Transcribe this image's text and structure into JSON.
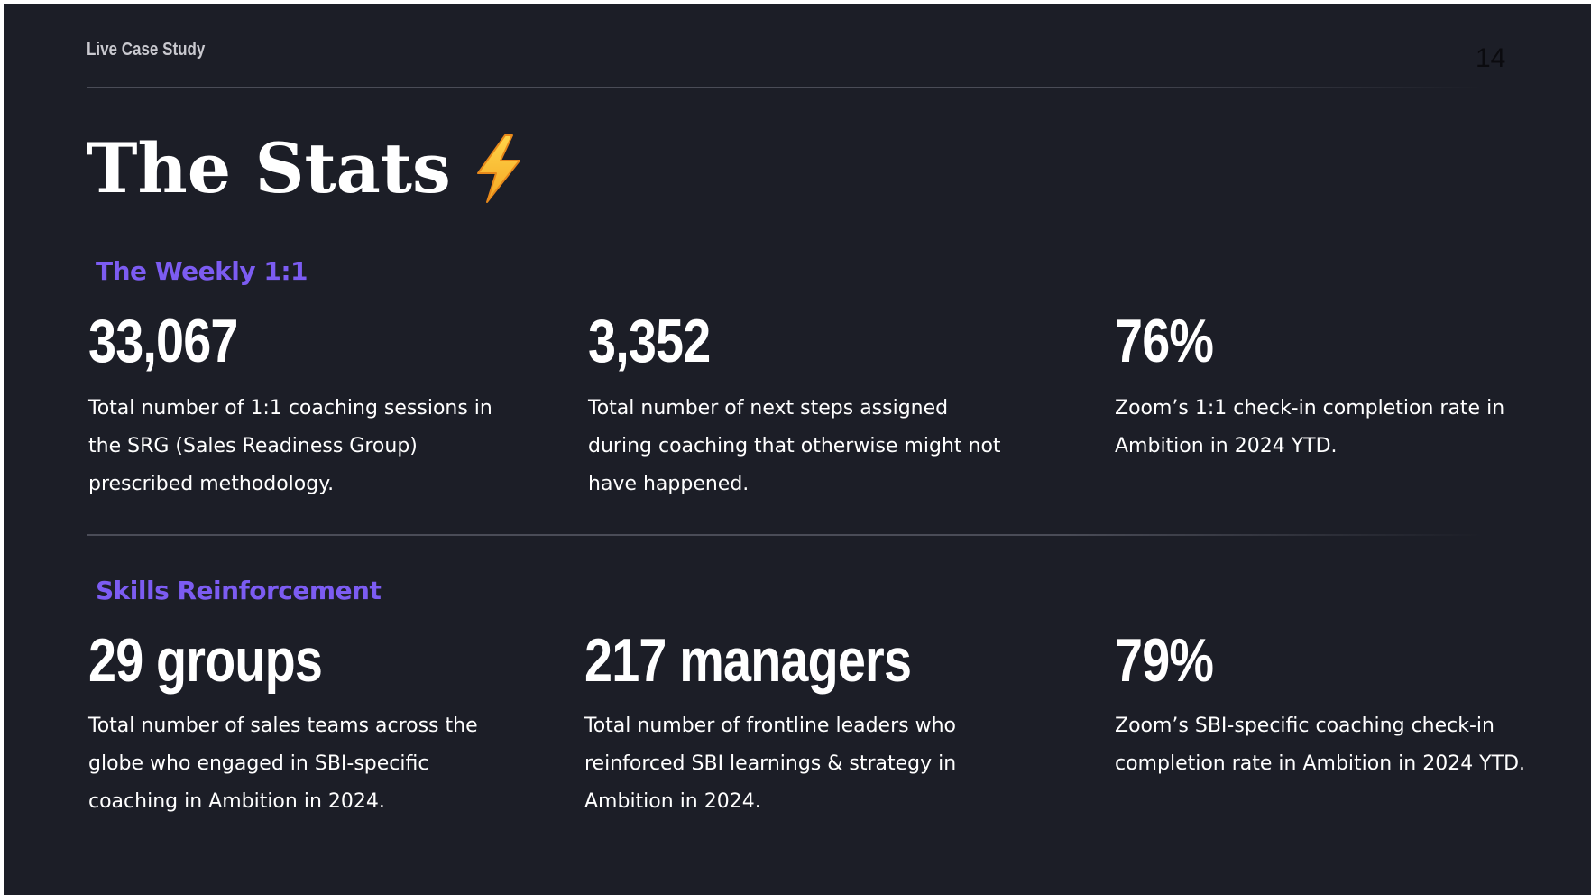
{
  "header": {
    "label": "Live Case Study",
    "page_number": "14"
  },
  "title": "The Stats",
  "title_icon": "lightning-bolt-icon",
  "colors": {
    "background": "#1c1e27",
    "accent": "#7c5cf2",
    "text": "#ffffff"
  },
  "sections": [
    {
      "label": "The Weekly 1:1",
      "stats": [
        {
          "value": "33,067",
          "description": "Total number of 1:1 coaching sessions in the SRG (Sales Readiness Group) prescribed methodology."
        },
        {
          "value": "3,352",
          "description": "Total number of next steps assigned during coaching that otherwise might not have happened."
        },
        {
          "value": "76%",
          "description": "Zoom’s 1:1 check-in completion rate in Ambition in 2024 YTD."
        }
      ]
    },
    {
      "label": "Skills Reinforcement",
      "stats": [
        {
          "value": "29 groups",
          "description": "Total number of sales teams across the globe who engaged in SBI-specific coaching in Ambition in 2024."
        },
        {
          "value": "217 managers",
          "description": "Total number of frontline leaders who reinforced SBI learnings & strategy  in Ambition in 2024."
        },
        {
          "value": "79%",
          "description": "Zoom’s SBI-specific coaching check-in completion rate in Ambition in 2024 YTD."
        }
      ]
    }
  ]
}
